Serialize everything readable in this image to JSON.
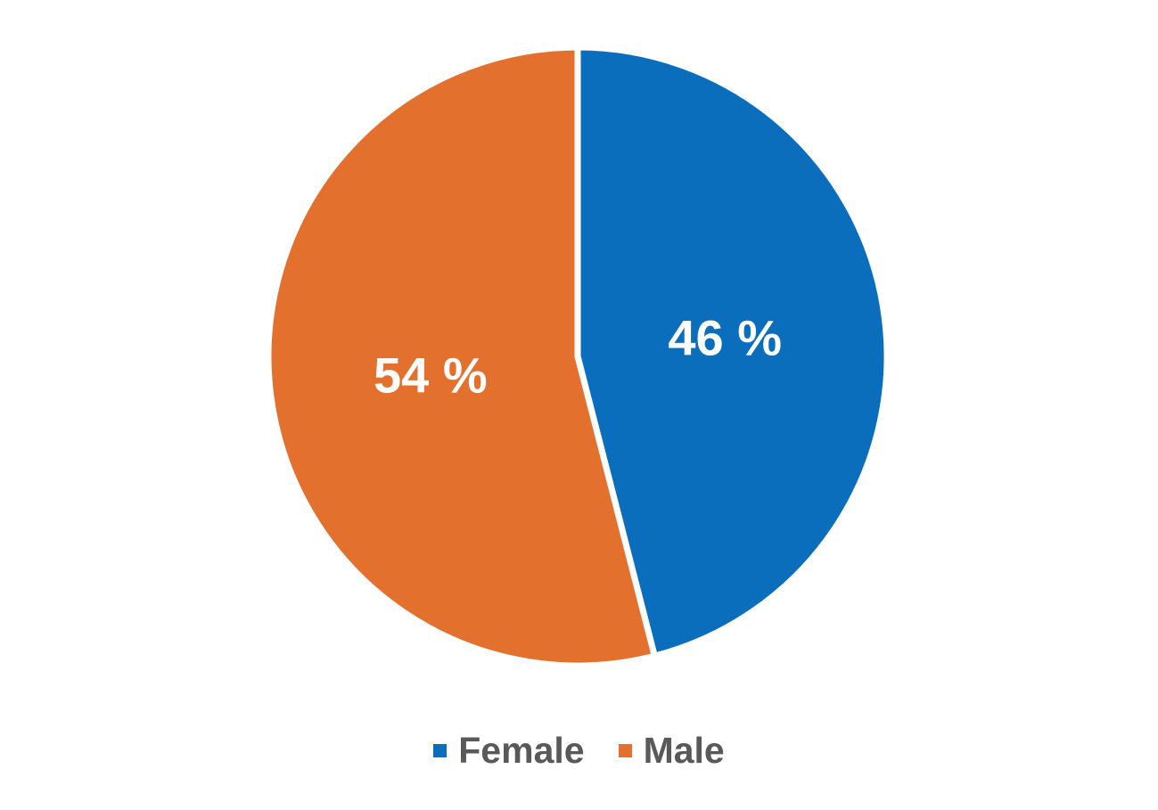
{
  "chart_data": {
    "type": "pie",
    "categories": [
      "Female",
      "Male"
    ],
    "values": [
      46,
      54
    ],
    "labels": [
      "46 %",
      "54 %"
    ],
    "colors": [
      "#0A6EBD",
      "#E4702E"
    ],
    "start_angle_deg": 0,
    "direction": "clockwise",
    "separator_color": "#FFFFFF",
    "label_color": "#FFFFFF",
    "legend_position": "bottom",
    "legend_text_color": "#595959",
    "background_color": "#FFFFFF",
    "title": ""
  },
  "legend": {
    "items": [
      {
        "label": "Female",
        "color": "#0A6EBD"
      },
      {
        "label": "Male",
        "color": "#E4702E"
      }
    ]
  }
}
